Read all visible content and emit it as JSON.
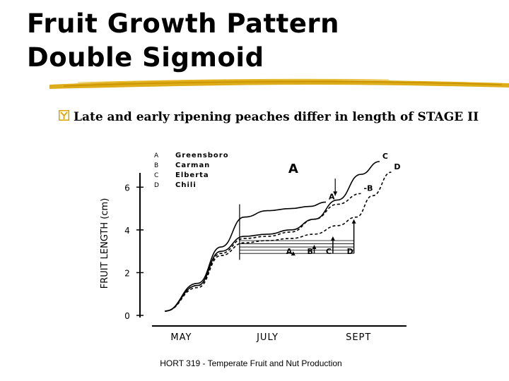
{
  "title": {
    "line1": "Fruit Growth Pattern",
    "line2": "Double Sigmoid"
  },
  "bullet": {
    "icon": "y-checkbox-icon",
    "text": "Late and early ripening peaches differ in length of STAGE II"
  },
  "footer": "HORT 319 - Temperate Fruit and Nut Production",
  "colors": {
    "accent_gold": "#d9a400",
    "ink": "#000000"
  },
  "chart_data": {
    "type": "line",
    "title": "A",
    "ylabel": "FRUIT LENGTH (cm)",
    "xlabel": "",
    "x_ticks": [
      "MAY",
      "JULY",
      "SEPT"
    ],
    "x_range": [
      0,
      10
    ],
    "y_ticks": [
      "0",
      "2",
      "4",
      "6"
    ],
    "ylim": [
      0,
      7
    ],
    "legend": [
      {
        "key": "A",
        "name": "Greensboro"
      },
      {
        "key": "B",
        "name": "Carman"
      },
      {
        "key": "C",
        "name": "Elberta"
      },
      {
        "key": "D",
        "name": "Chili"
      }
    ],
    "legend_position": "top-left",
    "series": [
      {
        "name": "A",
        "label": "A",
        "style": "solid",
        "points": [
          [
            0.1,
            0.2
          ],
          [
            1.5,
            1.5
          ],
          [
            2.5,
            3.2
          ],
          [
            3.5,
            4.6
          ],
          [
            4.5,
            4.9
          ],
          [
            5.5,
            5.0
          ],
          [
            6.3,
            5.1
          ],
          [
            7.0,
            5.3
          ]
        ]
      },
      {
        "name": "B",
        "label": "-B",
        "style": "dashed",
        "points": [
          [
            0.1,
            0.2
          ],
          [
            1.5,
            1.4
          ],
          [
            2.5,
            2.9
          ],
          [
            3.5,
            3.6
          ],
          [
            4.5,
            3.7
          ],
          [
            5.5,
            3.9
          ],
          [
            6.5,
            4.5
          ],
          [
            7.5,
            5.2
          ],
          [
            8.5,
            5.7
          ]
        ]
      },
      {
        "name": "C",
        "label": "C",
        "style": "solid",
        "points": [
          [
            0.1,
            0.2
          ],
          [
            1.5,
            1.4
          ],
          [
            2.5,
            3.0
          ],
          [
            3.5,
            3.7
          ],
          [
            4.5,
            3.8
          ],
          [
            5.5,
            4.0
          ],
          [
            6.5,
            4.5
          ],
          [
            7.5,
            5.4
          ],
          [
            8.5,
            6.6
          ],
          [
            9.3,
            7.2
          ]
        ]
      },
      {
        "name": "D",
        "label": "D",
        "style": "dashed",
        "points": [
          [
            0.1,
            0.2
          ],
          [
            1.5,
            1.3
          ],
          [
            2.5,
            2.8
          ],
          [
            3.5,
            3.4
          ],
          [
            4.5,
            3.5
          ],
          [
            5.5,
            3.6
          ],
          [
            6.5,
            3.8
          ],
          [
            7.5,
            4.2
          ],
          [
            8.3,
            4.6
          ],
          [
            9.0,
            5.6
          ],
          [
            9.8,
            6.7
          ]
        ]
      }
    ],
    "stage_end_markers": [
      {
        "label": "A",
        "x": 5.6
      },
      {
        "label": "B",
        "x": 6.5
      },
      {
        "label": "C",
        "x": 7.3
      },
      {
        "label": "D",
        "x": 8.2
      }
    ]
  }
}
